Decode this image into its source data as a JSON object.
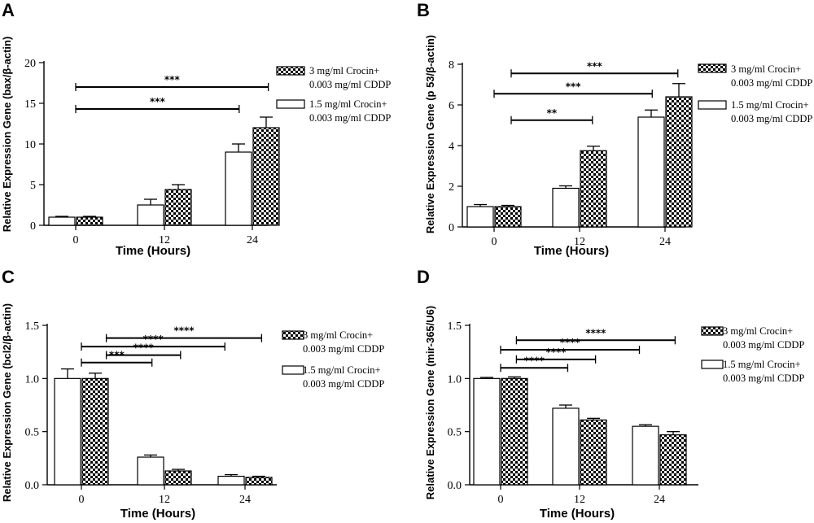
{
  "colors": {
    "ink": "#000000",
    "background": "#ffffff",
    "open_fill": "#ffffff",
    "checker_dark": "#000000"
  },
  "legend": {
    "series_checkered": [
      "3 mg/ml Crocin+",
      "0.003 mg/ml CDDP"
    ],
    "series_open": [
      "1.5 mg/ml Crocin+",
      "0.003 mg/ml CDDP"
    ]
  },
  "chart_data": [
    {
      "panel": "A",
      "type": "bar",
      "ylabel": "Relative Expression Gene (bax/β-actin)",
      "xlabel": "Time (Hours)",
      "categories": [
        "0",
        "12",
        "24"
      ],
      "ylim": [
        0,
        20
      ],
      "yticks": [
        0,
        5,
        10,
        15,
        20
      ],
      "series": [
        {
          "name": "1.5 mg/ml Crocin+ 0.003 mg/ml CDDP",
          "pattern": "open",
          "values": [
            1.0,
            2.5,
            9.0
          ],
          "errors": [
            0.1,
            0.7,
            1.0
          ]
        },
        {
          "name": "3 mg/ml Crocin+ 0.003 mg/ml CDDP",
          "pattern": "checkered",
          "values": [
            1.0,
            4.4,
            12.0
          ],
          "errors": [
            0.1,
            0.6,
            1.3
          ]
        }
      ],
      "significance": [
        {
          "from": 0,
          "to": 1.85,
          "level": 14.3,
          "label": "***"
        },
        {
          "from": 0,
          "to": 2.18,
          "level": 17.0,
          "label": "***"
        }
      ]
    },
    {
      "panel": "B",
      "type": "bar",
      "ylabel": "Relative Expression Gene (p 53/β-actin)",
      "xlabel": "Time (Hours)",
      "categories": [
        "0",
        "12",
        "24"
      ],
      "ylim": [
        0,
        8
      ],
      "yticks": [
        0,
        2,
        4,
        6,
        8
      ],
      "series": [
        {
          "name": "1.5 mg/ml Crocin+ 0.003 mg/ml CDDP",
          "pattern": "open",
          "values": [
            1.0,
            1.9,
            5.4
          ],
          "errors": [
            0.1,
            0.12,
            0.35
          ]
        },
        {
          "name": "3 mg/ml Crocin+ 0.003 mg/ml CDDP",
          "pattern": "checkered",
          "values": [
            1.0,
            3.75,
            6.4
          ],
          "errors": [
            0.06,
            0.22,
            0.65
          ]
        }
      ],
      "significance": [
        {
          "from": 0.2,
          "to": 1.15,
          "level": 5.25,
          "label": "**"
        },
        {
          "from": 0,
          "to": 1.85,
          "level": 6.55,
          "label": "***"
        },
        {
          "from": 0.2,
          "to": 2.15,
          "level": 7.55,
          "label": "***"
        }
      ]
    },
    {
      "panel": "C",
      "type": "bar",
      "ylabel": "Relative Expression Gene (bcl2/β-actin)",
      "xlabel": "Time (Hours)",
      "categories": [
        "0",
        "12",
        "24"
      ],
      "ylim": [
        0,
        1.5
      ],
      "yticks": [
        0.0,
        0.5,
        1.0,
        1.5
      ],
      "ytick_labels": [
        "0.0",
        "0.5",
        "1.0",
        "1.5"
      ],
      "series": [
        {
          "name": "1.5 mg/ml Crocin+ 0.003 mg/ml CDDP",
          "pattern": "open",
          "values": [
            1.0,
            0.26,
            0.08
          ],
          "errors": [
            0.09,
            0.02,
            0.015
          ]
        },
        {
          "name": "3 mg/ml Crocin+ 0.003 mg/ml CDDP",
          "pattern": "checkered",
          "values": [
            1.0,
            0.13,
            0.07
          ],
          "errors": [
            0.05,
            0.015,
            0.01
          ]
        }
      ],
      "significance": [
        {
          "from": 0,
          "to": 0.85,
          "level": 1.15,
          "label": "***"
        },
        {
          "from": 0.3,
          "to": 1.2,
          "level": 1.22,
          "label": "****"
        },
        {
          "from": 0,
          "to": 1.75,
          "level": 1.3,
          "label": "****"
        },
        {
          "from": 0.3,
          "to": 2.2,
          "level": 1.38,
          "label": "****"
        }
      ]
    },
    {
      "panel": "D",
      "type": "bar",
      "ylabel": "Relative Expression Gene (mir-365/U6)",
      "xlabel": "Time (Hours)",
      "categories": [
        "0",
        "12",
        "24"
      ],
      "ylim": [
        0,
        1.5
      ],
      "yticks": [
        0.0,
        0.5,
        1.0,
        1.5
      ],
      "ytick_labels": [
        "0.0",
        "0.5",
        "1.0",
        "1.5"
      ],
      "series": [
        {
          "name": "1.5 mg/ml Crocin+ 0.003 mg/ml CDDP",
          "pattern": "open",
          "values": [
            1.0,
            0.72,
            0.55
          ],
          "errors": [
            0.01,
            0.03,
            0.015
          ]
        },
        {
          "name": "3 mg/ml Crocin+ 0.003 mg/ml CDDP",
          "pattern": "checkered",
          "values": [
            1.0,
            0.61,
            0.47
          ],
          "errors": [
            0.015,
            0.015,
            0.03
          ]
        }
      ],
      "significance": [
        {
          "from": 0,
          "to": 0.85,
          "level": 1.1,
          "label": "****"
        },
        {
          "from": 0.2,
          "to": 1.2,
          "level": 1.18,
          "label": "****"
        },
        {
          "from": 0,
          "to": 1.75,
          "level": 1.27,
          "label": "****"
        },
        {
          "from": 0.2,
          "to": 2.2,
          "level": 1.36,
          "label": "****"
        }
      ]
    }
  ]
}
